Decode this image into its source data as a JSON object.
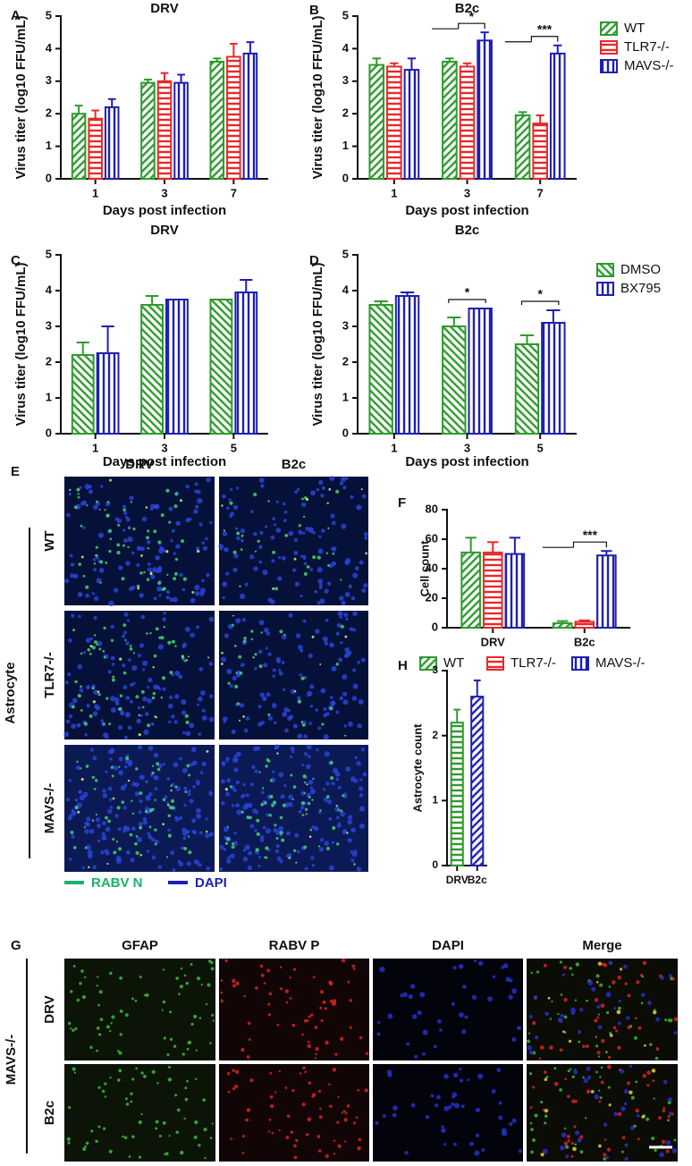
{
  "chart_data": [
    {
      "type": "bar",
      "title": "DRV",
      "xlabel": "Days post infection",
      "ylabel": "Virus titer (log10 FFU/mL)",
      "categories": [
        "1",
        "3",
        "7"
      ],
      "ylim": [
        0,
        5
      ],
      "yticks": [
        0,
        1,
        2,
        3,
        4,
        5
      ],
      "series": [
        {
          "name": "WT",
          "color": "#2e9a2e",
          "pattern": "diagonal",
          "values": [
            2.0,
            2.95,
            3.6
          ],
          "errors": [
            0.25,
            0.1,
            0.1
          ]
        },
        {
          "name": "TLR7-/-",
          "color": "#e8292b",
          "pattern": "horizontal",
          "values": [
            1.85,
            3.0,
            3.75
          ],
          "errors": [
            0.25,
            0.25,
            0.4
          ]
        },
        {
          "name": "MAVS-/-",
          "color": "#1f1fb4",
          "pattern": "vertical",
          "values": [
            2.2,
            2.95,
            3.85
          ],
          "errors": [
            0.25,
            0.25,
            0.35
          ]
        }
      ]
    },
    {
      "type": "bar",
      "title": "B2c",
      "xlabel": "Days post infection",
      "ylabel": "Virus titer (log10 FFU/mL)",
      "categories": [
        "1",
        "3",
        "7"
      ],
      "ylim": [
        0,
        5
      ],
      "yticks": [
        0,
        1,
        2,
        3,
        4,
        5
      ],
      "legend": "right",
      "annotations": [
        "*",
        "***"
      ],
      "series": [
        {
          "name": "WT",
          "color": "#2e9a2e",
          "pattern": "diagonal",
          "values": [
            3.5,
            3.6,
            1.95
          ],
          "errors": [
            0.2,
            0.1,
            0.1
          ]
        },
        {
          "name": "TLR7-/-",
          "color": "#e8292b",
          "pattern": "horizontal",
          "values": [
            3.45,
            3.45,
            1.7
          ],
          "errors": [
            0.1,
            0.1,
            0.25
          ]
        },
        {
          "name": "MAVS-/-",
          "color": "#1f1fb4",
          "pattern": "vertical",
          "values": [
            3.35,
            4.25,
            3.85
          ],
          "errors": [
            0.35,
            0.25,
            0.25
          ]
        }
      ]
    },
    {
      "type": "bar",
      "title": "DRV",
      "xlabel": "Days post infection",
      "ylabel": "Virus titer (log10 FFU/mL)",
      "categories": [
        "1",
        "3",
        "5"
      ],
      "ylim": [
        0,
        5
      ],
      "yticks": [
        0,
        1,
        2,
        3,
        4,
        5
      ],
      "series": [
        {
          "name": "DMSO",
          "color": "#2e9a2e",
          "pattern": "backdiagonal",
          "values": [
            2.2,
            3.6,
            3.75
          ],
          "errors": [
            0.35,
            0.25,
            0
          ]
        },
        {
          "name": "BX795",
          "color": "#1f1fb4",
          "pattern": "vertical",
          "values": [
            2.25,
            3.75,
            3.95
          ],
          "errors": [
            0.75,
            0,
            0.35
          ]
        }
      ]
    },
    {
      "type": "bar",
      "title": "B2c",
      "xlabel": "Days post infection",
      "ylabel": "Virus titer (log10 FFU/mL)",
      "categories": [
        "1",
        "3",
        "5"
      ],
      "ylim": [
        0,
        5
      ],
      "yticks": [
        0,
        1,
        2,
        3,
        4,
        5
      ],
      "legend": "right",
      "annotations": [
        "*",
        "*"
      ],
      "series": [
        {
          "name": "DMSO",
          "color": "#2e9a2e",
          "pattern": "backdiagonal",
          "values": [
            3.6,
            3.0,
            2.5
          ],
          "errors": [
            0.1,
            0.25,
            0.25
          ]
        },
        {
          "name": "BX795",
          "color": "#1f1fb4",
          "pattern": "vertical",
          "values": [
            3.85,
            3.5,
            3.1
          ],
          "errors": [
            0.1,
            0,
            0.35
          ]
        }
      ]
    },
    {
      "type": "bar",
      "ylabel": "Cell count",
      "categories": [
        "DRV",
        "B2c"
      ],
      "ylim": [
        0,
        80
      ],
      "yticks": [
        0,
        20,
        40,
        60,
        80
      ],
      "legend": "bottom",
      "annotations": [
        "***"
      ],
      "series": [
        {
          "name": "WT",
          "color": "#2e9a2e",
          "pattern": "diagonal",
          "values": [
            51,
            3
          ],
          "errors": [
            10,
            1.5
          ]
        },
        {
          "name": "TLR7-/-",
          "color": "#e8292b",
          "pattern": "horizontal",
          "values": [
            51,
            4
          ],
          "errors": [
            7,
            1
          ]
        },
        {
          "name": "MAVS-/-",
          "color": "#1f1fb4",
          "pattern": "vertical",
          "values": [
            50,
            49
          ],
          "errors": [
            11,
            3
          ]
        }
      ]
    },
    {
      "type": "bar",
      "ylabel": "Astrocyte count",
      "categories": [
        "DRV",
        "B2c"
      ],
      "ylim": [
        0,
        3
      ],
      "yticks": [
        0,
        1,
        2,
        3
      ],
      "colors": [
        "#2e9a2e",
        "#1f1fb4"
      ],
      "patterns": [
        "horizontal",
        "diagonal"
      ],
      "values": [
        2.2,
        2.6
      ],
      "errors": [
        0.2,
        0.25
      ]
    }
  ],
  "panel_labels": [
    "A",
    "B",
    "C",
    "D",
    "E",
    "F",
    "G",
    "H"
  ],
  "panel_e": {
    "columns": [
      "DRV",
      "B2c"
    ],
    "rows": [
      "WT",
      "TLR7-/-",
      "MAVS-/-"
    ],
    "group": "Astrocyte",
    "legend": [
      {
        "name": "RABV N",
        "color": "#19b36b"
      },
      {
        "name": "DAPI",
        "color": "#1f1fb4"
      }
    ]
  },
  "panel_g": {
    "columns": [
      "GFAP",
      "RABV P",
      "DAPI",
      "Merge"
    ],
    "rows": [
      "DRV",
      "B2c"
    ],
    "group": "MAVS-/-"
  }
}
